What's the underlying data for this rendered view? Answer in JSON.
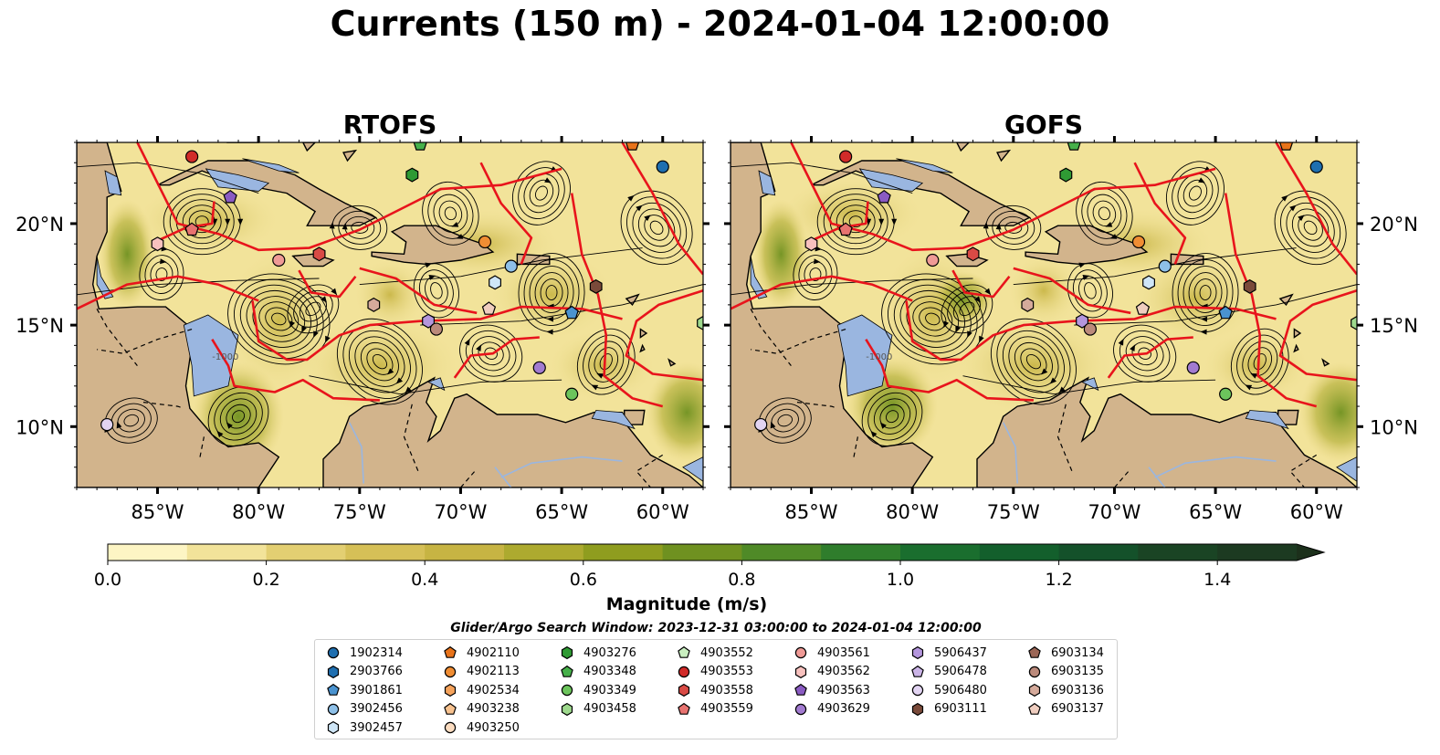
{
  "figure": {
    "title": "Currents (150 m) - 2024-01-04 12:00:00",
    "colorbar_label": "Magnitude (m/s)",
    "search_window": "Glider/Argo Search Window: 2023-12-31 03:00:00 to 2024-01-04 12:00:00"
  },
  "chart_data": [
    {
      "type": "heatmap",
      "title": "RTOFS",
      "xlim": [
        -89,
        -58
      ],
      "ylim": [
        7,
        24
      ],
      "x_ticks": [
        "85°W",
        "80°W",
        "75°W",
        "70°W",
        "65°W",
        "60°W"
      ],
      "y_ticks": [
        "20°N",
        "15°N",
        "10°N"
      ],
      "y_tick_side": "left",
      "land_color": "#d2b48c",
      "shallow_water_color": "#9ab6e0",
      "contour_label": "-1000",
      "overlays": [
        "streamlines",
        "eez-boundaries",
        "float-positions"
      ]
    },
    {
      "type": "heatmap",
      "title": "GOFS",
      "xlim": [
        -89,
        -58
      ],
      "ylim": [
        7,
        24
      ],
      "x_ticks": [
        "85°W",
        "80°W",
        "75°W",
        "70°W",
        "65°W",
        "60°W"
      ],
      "y_ticks": [
        "20°N",
        "15°N",
        "10°N"
      ],
      "y_tick_side": "right",
      "land_color": "#d2b48c",
      "shallow_water_color": "#9ab6e0",
      "contour_label": "-1000",
      "overlays": [
        "streamlines",
        "eez-boundaries",
        "float-positions"
      ]
    }
  ],
  "colorbar": {
    "min": 0.0,
    "max": 1.5,
    "extend": "max",
    "ticks": [
      "0.0",
      "0.2",
      "0.4",
      "0.6",
      "0.8",
      "1.0",
      "1.2",
      "1.4"
    ],
    "tick_values": [
      0.0,
      0.2,
      0.4,
      0.6,
      0.8,
      1.0,
      1.2,
      1.4
    ],
    "colors": [
      "#fdf5c4",
      "#f2e39a",
      "#e3cf72",
      "#d6c057",
      "#c7b443",
      "#adaa2f",
      "#8f9d1f",
      "#6f9120",
      "#4f8a27",
      "#2f7d2c",
      "#1a6e2e",
      "#135f2c",
      "#14512a",
      "#1a4424",
      "#1c3a21",
      "#1c301b"
    ]
  },
  "floats": [
    {
      "id": "1902314",
      "marker": "circle",
      "color": "#1f6fb0",
      "lon": -60.0,
      "lat": 22.8
    },
    {
      "id": "2903766",
      "marker": "hexagon",
      "color": "#1f6fb0",
      "lon": null,
      "lat": null
    },
    {
      "id": "3901861",
      "marker": "pentagon",
      "color": "#4a93d0",
      "lon": -64.5,
      "lat": 15.6
    },
    {
      "id": "3902456",
      "marker": "circle",
      "color": "#8ec0e8",
      "lon": -67.5,
      "lat": 17.9
    },
    {
      "id": "3902457",
      "marker": "hexagon",
      "color": "#cfe6f7",
      "lon": -68.3,
      "lat": 17.1
    },
    {
      "id": "4902110",
      "marker": "pentagon",
      "color": "#e8731a",
      "lon": -61.5,
      "lat": 23.9
    },
    {
      "id": "4902113",
      "marker": "circle",
      "color": "#f08d33",
      "lon": -68.8,
      "lat": 19.1
    },
    {
      "id": "4902534",
      "marker": "hexagon",
      "color": "#f5a35c",
      "lon": null,
      "lat": null
    },
    {
      "id": "4903238",
      "marker": "pentagon",
      "color": "#f8c28f",
      "lon": null,
      "lat": null
    },
    {
      "id": "4903250",
      "marker": "circle",
      "color": "#fbdcc0",
      "lon": null,
      "lat": null
    },
    {
      "id": "4903276",
      "marker": "hexagon",
      "color": "#2f9a34",
      "lon": -72.4,
      "lat": 22.4
    },
    {
      "id": "4903348",
      "marker": "pentagon",
      "color": "#46b04a",
      "lon": -72.0,
      "lat": 23.9
    },
    {
      "id": "4903349",
      "marker": "circle",
      "color": "#6cc45c",
      "lon": -64.5,
      "lat": 11.6
    },
    {
      "id": "4903458",
      "marker": "hexagon",
      "color": "#9ed98d",
      "lon": -58.0,
      "lat": 15.1
    },
    {
      "id": "4903552",
      "marker": "pentagon",
      "color": "#c9efc0",
      "lon": null,
      "lat": null
    },
    {
      "id": "4903553",
      "marker": "circle",
      "color": "#d12b29",
      "lon": -83.3,
      "lat": 23.3
    },
    {
      "id": "4903558",
      "marker": "hexagon",
      "color": "#d94a45",
      "lon": -77.0,
      "lat": 18.5
    },
    {
      "id": "4903559",
      "marker": "pentagon",
      "color": "#e87370",
      "lon": -83.3,
      "lat": 19.7
    },
    {
      "id": "4903561",
      "marker": "circle",
      "color": "#ef9a96",
      "lon": -79.0,
      "lat": 18.2
    },
    {
      "id": "4903562",
      "marker": "hexagon",
      "color": "#f7c1be",
      "lon": -85.0,
      "lat": 19.0
    },
    {
      "id": "4903563",
      "marker": "pentagon",
      "color": "#8a5bc2",
      "lon": -81.4,
      "lat": 21.3
    },
    {
      "id": "4903629",
      "marker": "circle",
      "color": "#a27bd0",
      "lon": -66.1,
      "lat": 12.9
    },
    {
      "id": "5906437",
      "marker": "hexagon",
      "color": "#b496dd",
      "lon": -71.6,
      "lat": 15.2
    },
    {
      "id": "5906478",
      "marker": "pentagon",
      "color": "#cbb4e7",
      "lon": null,
      "lat": null
    },
    {
      "id": "5906480",
      "marker": "circle",
      "color": "#e2d4f2",
      "lon": -87.5,
      "lat": 10.1
    },
    {
      "id": "6903111",
      "marker": "hexagon",
      "color": "#7a4a3a",
      "lon": -63.3,
      "lat": 16.9
    },
    {
      "id": "6903134",
      "marker": "pentagon",
      "color": "#9b6656",
      "lon": null,
      "lat": null
    },
    {
      "id": "6903135",
      "marker": "circle",
      "color": "#bb8a7b",
      "lon": -71.2,
      "lat": 14.8
    },
    {
      "id": "6903136",
      "marker": "hexagon",
      "color": "#d5aa9b",
      "lon": -74.3,
      "lat": 16.0
    },
    {
      "id": "6903137",
      "marker": "pentagon",
      "color": "#efcdbf",
      "lon": -68.6,
      "lat": 15.8
    }
  ]
}
